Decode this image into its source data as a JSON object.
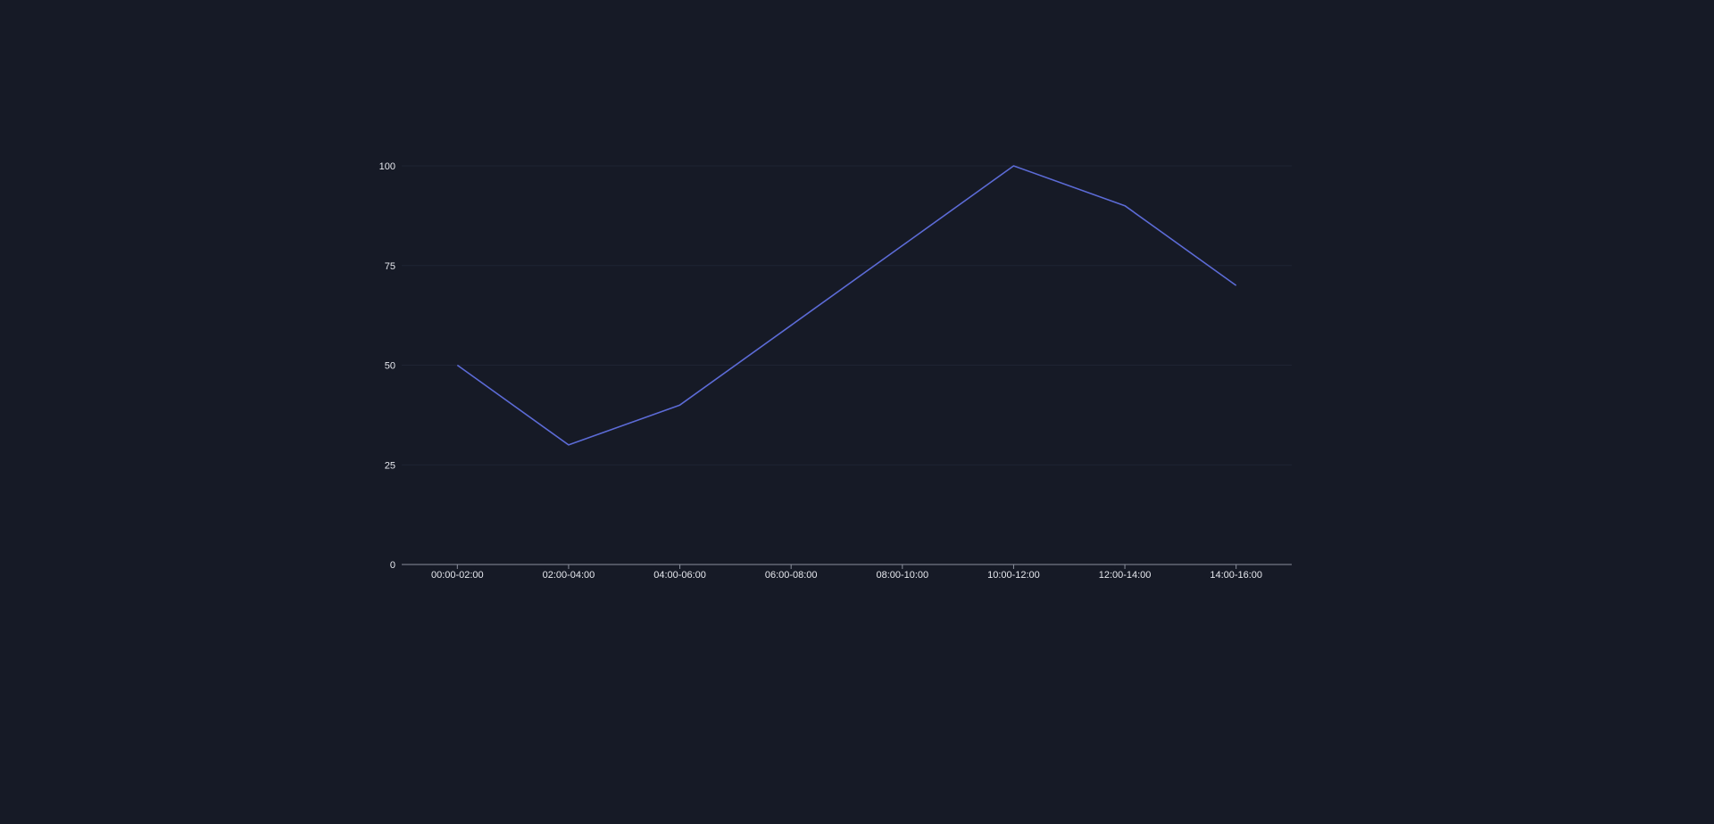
{
  "chart_data": {
    "type": "line",
    "categories": [
      "00:00-02:00",
      "02:00-04:00",
      "04:00-06:00",
      "06:00-08:00",
      "08:00-10:00",
      "10:00-12:00",
      "12:00-14:00",
      "14:00-16:00"
    ],
    "series": [
      {
        "values": [
          50,
          30,
          40,
          60,
          80,
          100,
          90,
          70
        ]
      }
    ],
    "ylim": [
      0,
      100
    ],
    "yticks": [
      "0",
      "25",
      "50",
      "75",
      "100"
    ],
    "grid": true,
    "colors": {
      "background": "#161a26",
      "line": "#5c6bd6",
      "grid": "#1f2433",
      "axis": "#8a8f9c",
      "label": "#e6e8ee"
    }
  }
}
